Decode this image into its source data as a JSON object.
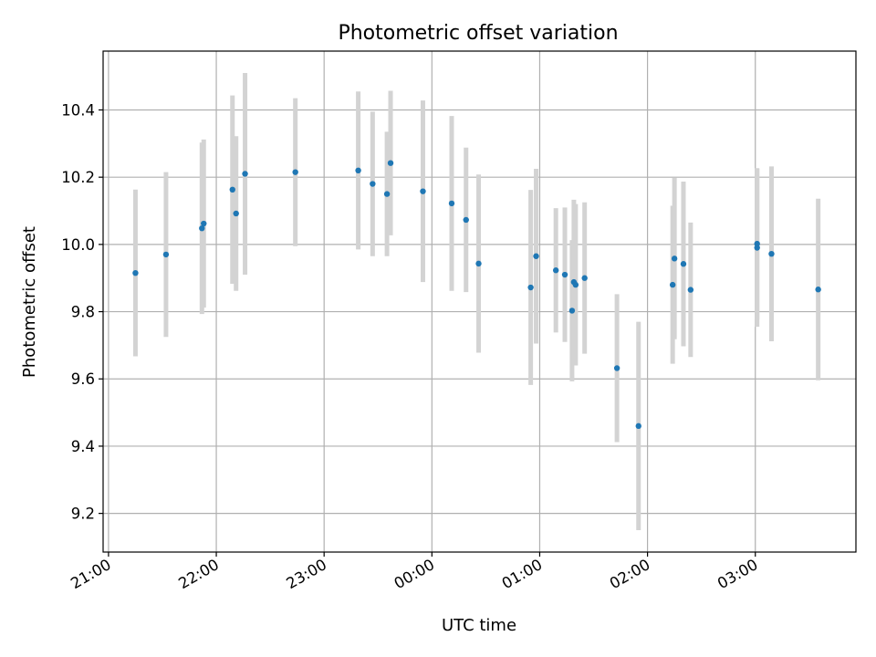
{
  "chart_data": {
    "type": "scatter",
    "title": "Photometric offset variation",
    "xlabel": "UTC time",
    "ylabel": "Photometric offset",
    "x_tick_labels": [
      "21:00",
      "22:00",
      "23:00",
      "00:00",
      "01:00",
      "02:00",
      "03:00"
    ],
    "y_tick_labels": [
      "9.2",
      "9.4",
      "9.6",
      "9.8",
      "10.0",
      "10.2",
      "10.4"
    ],
    "xlim": [
      "20:57",
      "03:56"
    ],
    "ylim": [
      9.085,
      10.575
    ],
    "grid": true,
    "point_color": "#1f77b4",
    "errorbar_color": "#d3d3d3",
    "points": [
      {
        "time": "21:15",
        "y": 9.915,
        "err": 0.248
      },
      {
        "time": "21:32",
        "y": 9.97,
        "err": 0.245
      },
      {
        "time": "21:52",
        "y": 10.048,
        "err": 0.255
      },
      {
        "time": "21:53",
        "y": 10.062,
        "err": 0.25
      },
      {
        "time": "22:09",
        "y": 10.163,
        "err": 0.28
      },
      {
        "time": "22:11",
        "y": 10.092,
        "err": 0.23
      },
      {
        "time": "22:16",
        "y": 10.21,
        "err": 0.3
      },
      {
        "time": "22:44",
        "y": 10.215,
        "err": 0.22
      },
      {
        "time": "23:19",
        "y": 10.22,
        "err": 0.235
      },
      {
        "time": "23:27",
        "y": 10.18,
        "err": 0.215
      },
      {
        "time": "23:35",
        "y": 10.15,
        "err": 0.185
      },
      {
        "time": "23:37",
        "y": 10.242,
        "err": 0.215
      },
      {
        "time": "23:55",
        "y": 10.158,
        "err": 0.27
      },
      {
        "time": "00:11",
        "y": 10.122,
        "err": 0.26
      },
      {
        "time": "00:19",
        "y": 10.073,
        "err": 0.215
      },
      {
        "time": "00:26",
        "y": 9.943,
        "err": 0.265
      },
      {
        "time": "00:55",
        "y": 9.872,
        "err": 0.29
      },
      {
        "time": "00:58",
        "y": 9.965,
        "err": 0.26
      },
      {
        "time": "01:09",
        "y": 9.923,
        "err": 0.185
      },
      {
        "time": "01:14",
        "y": 9.91,
        "err": 0.2
      },
      {
        "time": "01:18",
        "y": 9.803,
        "err": 0.21
      },
      {
        "time": "01:19",
        "y": 9.888,
        "err": 0.245
      },
      {
        "time": "01:20",
        "y": 9.88,
        "err": 0.24
      },
      {
        "time": "01:25",
        "y": 9.9,
        "err": 0.225
      },
      {
        "time": "01:43",
        "y": 9.632,
        "err": 0.22
      },
      {
        "time": "01:55",
        "y": 9.46,
        "err": 0.31
      },
      {
        "time": "02:14",
        "y": 9.88,
        "err": 0.235
      },
      {
        "time": "02:15",
        "y": 9.958,
        "err": 0.24
      },
      {
        "time": "02:20",
        "y": 9.942,
        "err": 0.245
      },
      {
        "time": "02:24",
        "y": 9.865,
        "err": 0.2
      },
      {
        "time": "03:01",
        "y": 9.99,
        "err": 0.235
      },
      {
        "time": "03:01",
        "y": 10.002,
        "err": 0.225
      },
      {
        "time": "03:09",
        "y": 9.972,
        "err": 0.26
      },
      {
        "time": "03:35",
        "y": 9.866,
        "err": 0.27
      }
    ]
  }
}
